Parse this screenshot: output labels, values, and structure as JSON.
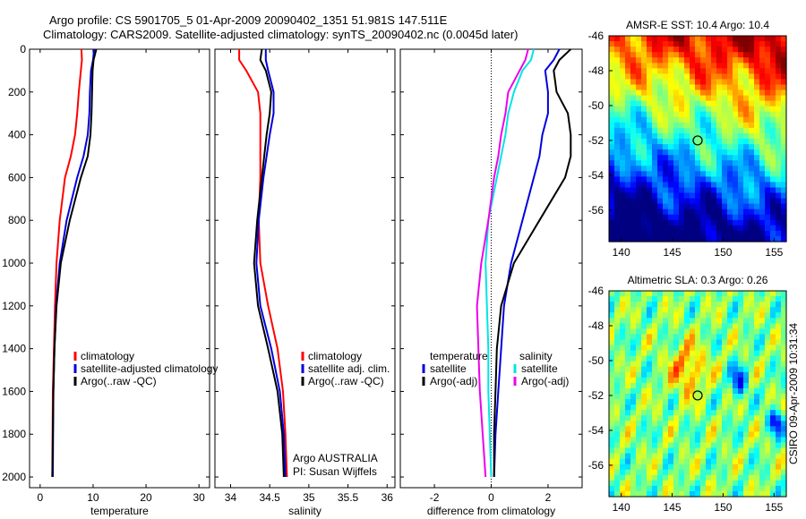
{
  "title_line1": "Argo profile: CS 5901705_5 01-Apr-2009 20090402_1351 51.981S 147.511E",
  "title_line2": "Climatology: CARS2009. Satellite-adjusted climatology: synTS_20090402.nc (0.0045d later)",
  "colors": {
    "climatology": "#ff0000",
    "satellite": "#0000dd",
    "argo": "#000000",
    "cyan": "#00e5e5",
    "magenta": "#ee00ee"
  },
  "chart_data": [
    {
      "id": "temperature",
      "type": "line",
      "xlabel": "temperature",
      "ylabel": "",
      "xlim": [
        -2,
        32
      ],
      "ylim": [
        2050,
        0
      ],
      "x_ticks": [
        "0",
        "10",
        "20",
        "30"
      ],
      "y_ticks": [
        "0",
        "200",
        "400",
        "600",
        "800",
        "1000",
        "1200",
        "1400",
        "1600",
        "1800",
        "2000"
      ],
      "legend": [
        "climatology",
        "satellite-adjusted climatology",
        "Argo(..raw -QC)"
      ],
      "series": [
        {
          "name": "climatology",
          "color": "#ff0000",
          "x": [
            7.8,
            7.9,
            7.7,
            7.3,
            7.0,
            6.6,
            5.8,
            4.7,
            3.7,
            3.1,
            2.8,
            2.6,
            2.4,
            2.3
          ],
          "y": [
            0,
            50,
            100,
            200,
            300,
            400,
            500,
            600,
            800,
            1000,
            1200,
            1400,
            1600,
            2000
          ]
        },
        {
          "name": "satellite-adjusted climatology",
          "color": "#0000dd",
          "x": [
            10.2,
            10.0,
            9.6,
            9.4,
            9.3,
            9.0,
            8.2,
            7.0,
            5.0,
            3.7,
            3.0,
            2.7,
            2.5,
            2.4
          ],
          "y": [
            0,
            50,
            100,
            200,
            300,
            400,
            500,
            600,
            800,
            1000,
            1200,
            1400,
            1600,
            2000
          ]
        },
        {
          "name": "Argo(..raw -QC)",
          "color": "#000000",
          "x": [
            10.6,
            10.1,
            9.9,
            9.8,
            9.7,
            9.5,
            9.0,
            7.7,
            5.6,
            3.9,
            3.1,
            2.7,
            2.5,
            2.3
          ],
          "y": [
            0,
            50,
            100,
            200,
            300,
            400,
            500,
            600,
            800,
            1000,
            1200,
            1400,
            1600,
            2000
          ]
        }
      ]
    },
    {
      "id": "salinity",
      "type": "line",
      "xlabel": "salinity",
      "ylabel": "",
      "xlim": [
        33.8,
        36.1
      ],
      "ylim": [
        2050,
        0
      ],
      "x_ticks": [
        "34",
        "34.5",
        "35",
        "35.5",
        "36"
      ],
      "legend": [
        "climatology",
        "satellite adj. clim.",
        "Argo(..raw -QC)"
      ],
      "annotation": [
        "Argo AUSTRALIA",
        "PI: Susan Wijffels"
      ],
      "series": [
        {
          "name": "climatology",
          "color": "#ff0000",
          "x": [
            34.11,
            34.11,
            34.2,
            34.35,
            34.38,
            34.38,
            34.38,
            34.36,
            34.38,
            34.48,
            34.6,
            34.67,
            34.7,
            34.72
          ],
          "y": [
            0,
            50,
            100,
            200,
            300,
            400,
            600,
            800,
            1000,
            1200,
            1400,
            1600,
            1800,
            2000
          ]
        },
        {
          "name": "satellite adj. clim.",
          "color": "#0000dd",
          "x": [
            34.45,
            34.45,
            34.48,
            34.55,
            34.55,
            34.5,
            34.42,
            34.36,
            34.33,
            34.38,
            34.52,
            34.63,
            34.68,
            34.7
          ],
          "y": [
            0,
            50,
            100,
            200,
            300,
            400,
            600,
            800,
            1000,
            1200,
            1400,
            1600,
            1800,
            2000
          ]
        },
        {
          "name": "Argo(..raw -QC)",
          "color": "#000000",
          "x": [
            34.4,
            34.38,
            34.45,
            34.52,
            34.5,
            34.46,
            34.4,
            34.34,
            34.3,
            34.35,
            34.48,
            34.6,
            34.66,
            34.68
          ],
          "y": [
            0,
            50,
            100,
            200,
            300,
            400,
            600,
            800,
            1000,
            1200,
            1400,
            1600,
            1800,
            2000
          ]
        }
      ]
    },
    {
      "id": "difference",
      "type": "line",
      "xlabel": "difference from climatology",
      "ylabel": "",
      "xlim": [
        -3.2,
        3.2
      ],
      "ylim": [
        2050,
        0
      ],
      "x_ticks": [
        "-2",
        "0",
        "2"
      ],
      "legend_temperature_header": "temperature",
      "legend_salinity_header": "salinity",
      "legend_temperature": [
        "satellite",
        "Argo(-adj)"
      ],
      "legend_salinity": [
        "satellite",
        "Argo(-adj)"
      ],
      "series": [
        {
          "name": "temperature satellite",
          "color": "#0000dd",
          "x": [
            2.4,
            2.2,
            1.9,
            2.0,
            2.0,
            1.8,
            1.7,
            1.5,
            1.1,
            0.7,
            0.45,
            0.35,
            0.25,
            0.15,
            0.1
          ],
          "y": [
            0,
            50,
            100,
            200,
            300,
            400,
            500,
            600,
            800,
            1000,
            1200,
            1400,
            1600,
            1800,
            2000
          ]
        },
        {
          "name": "temperature Argo(-adj)",
          "color": "#000000",
          "x": [
            2.8,
            2.4,
            2.2,
            2.3,
            2.7,
            2.8,
            2.8,
            2.6,
            1.7,
            0.8,
            0.35,
            0.2,
            0.15,
            0.1,
            0.1
          ],
          "y": [
            0,
            50,
            100,
            200,
            300,
            400,
            500,
            600,
            800,
            1000,
            1200,
            1400,
            1600,
            1800,
            2000
          ]
        },
        {
          "name": "salinity satellite",
          "color": "#00e5e5",
          "x": [
            1.5,
            1.4,
            1.1,
            0.8,
            0.6,
            0.5,
            0.35,
            0.2,
            -0.1,
            -0.2,
            -0.15,
            -0.1,
            -0.1,
            -0.05,
            0.0
          ],
          "y": [
            0,
            50,
            100,
            200,
            300,
            400,
            500,
            600,
            800,
            1000,
            1200,
            1400,
            1600,
            1800,
            2000
          ]
        },
        {
          "name": "salinity Argo(-adj)",
          "color": "#ee00ee",
          "x": [
            1.3,
            1.2,
            1.0,
            0.6,
            0.5,
            0.35,
            0.25,
            0.1,
            -0.1,
            -0.35,
            -0.5,
            -0.45,
            -0.4,
            -0.3,
            -0.2
          ],
          "y": [
            0,
            50,
            100,
            200,
            300,
            400,
            500,
            600,
            800,
            1000,
            1200,
            1400,
            1600,
            1800,
            2000
          ]
        }
      ]
    },
    {
      "id": "sst",
      "type": "heatmap",
      "title": "AMSR-E SST: 10.4  Argo: 10.4",
      "xlim": [
        138.8,
        156.2
      ],
      "ylim": [
        -57.8,
        -46
      ],
      "x_ticks": [
        "140",
        "145",
        "150",
        "155"
      ],
      "y_ticks": [
        "-46",
        "-48",
        "-50",
        "-52",
        "-54",
        "-56"
      ],
      "marker": {
        "lon": 147.5,
        "lat": -52.0
      }
    },
    {
      "id": "sla",
      "type": "heatmap",
      "title": "Altimetric SLA: 0.3  Argo: 0.26",
      "xlim": [
        138.8,
        156.2
      ],
      "ylim": [
        -57.8,
        -46
      ],
      "x_ticks": [
        "140",
        "145",
        "150",
        "155"
      ],
      "y_ticks": [
        "-46",
        "-48",
        "-50",
        "-52",
        "-54",
        "-56"
      ],
      "marker": {
        "lon": 147.5,
        "lat": -52.0
      },
      "side_label": "CSIRO 09-Apr-2009 10:31:34"
    }
  ]
}
